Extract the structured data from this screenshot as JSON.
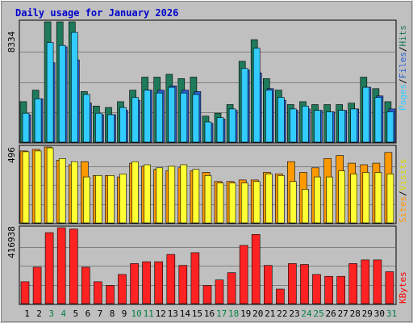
{
  "chart_data": {
    "type": "bar",
    "title": "Daily usage for January 2026",
    "categories": [
      "1",
      "2",
      "3",
      "4",
      "5",
      "6",
      "7",
      "8",
      "9",
      "10",
      "11",
      "12",
      "13",
      "14",
      "15",
      "16",
      "17",
      "18",
      "19",
      "20",
      "21",
      "22",
      "23",
      "24",
      "25",
      "26",
      "27",
      "28",
      "29",
      "30",
      "31"
    ],
    "weekend_days": [
      "3",
      "4",
      "10",
      "11",
      "17",
      "18",
      "24",
      "25",
      "31"
    ],
    "panels": [
      {
        "id": "top",
        "max_label": "8334",
        "ylim": [
          0,
          8334
        ],
        "grid": true,
        "legend": [
          "Pages",
          "/",
          "Files",
          "/",
          "Hits"
        ],
        "series": [
          {
            "name": "Hits",
            "color": "#1f7a5a",
            "values": [
              2800,
              3600,
              8334,
              8334,
              8334,
              3500,
              2500,
              2400,
              2800,
              3600,
              4500,
              4500,
              4700,
              4400,
              4500,
              1800,
              2000,
              2600,
              5600,
              7100,
              4400,
              3600,
              2600,
              2800,
              2600,
              2600,
              2600,
              2700,
              4500,
              3700,
              2800
            ]
          },
          {
            "name": "Files",
            "color": "#2a5fd3",
            "values": [
              1900,
              3000,
              5500,
              6600,
              5700,
              2700,
              1900,
              1900,
              2200,
              2900,
              3600,
              3600,
              3900,
              3600,
              3500,
              1300,
              1600,
              2200,
              5000,
              4800,
              3700,
              2900,
              2200,
              2300,
              2200,
              2100,
              2200,
              2300,
              3800,
              3200,
              2300
            ]
          },
          {
            "name": "Pages",
            "color": "#33ccff",
            "values": [
              2000,
              3000,
              6900,
              6700,
              7600,
              3300,
              2000,
              1900,
              2400,
              3100,
              3600,
              3400,
              3800,
              3400,
              3300,
              1400,
              1700,
              2300,
              5100,
              6500,
              3600,
              3100,
              2300,
              2500,
              2200,
              2100,
              2200,
              2300,
              3800,
              3100,
              2100
            ]
          }
        ]
      },
      {
        "id": "middle",
        "max_label": "496",
        "ylim": [
          0,
          496
        ],
        "grid": true,
        "legend": [
          "Sites",
          "/",
          "Visits"
        ],
        "series": [
          {
            "name": "Visits",
            "color": "#ff9900",
            "values": [
              470,
              480,
              496,
              410,
              380,
              400,
              310,
              310,
              300,
              390,
              370,
              350,
              340,
              360,
              340,
              330,
              270,
              270,
              280,
              280,
              330,
              320,
              400,
              330,
              360,
              420,
              440,
              390,
              380,
              390,
              460
            ]
          },
          {
            "name": "Sites",
            "color": "#ffff33",
            "values": [
              465,
              470,
              490,
              420,
              400,
              300,
              310,
              310,
              320,
              400,
              380,
              360,
              370,
              380,
              350,
              310,
              260,
              260,
              260,
              270,
              320,
              310,
              270,
              220,
              300,
              300,
              340,
              320,
              330,
              330,
              320
            ]
          }
        ]
      },
      {
        "id": "bottom",
        "max_label": "416938",
        "ylim": [
          0,
          416938
        ],
        "grid": true,
        "legend": [
          "KBytes"
        ],
        "series": [
          {
            "name": "KBytes",
            "color": "#ff2222",
            "values": [
              120000,
              200000,
              390000,
              416938,
              410000,
              200000,
              120000,
              100000,
              160000,
              220000,
              230000,
              230000,
              270000,
              210000,
              280000,
              100000,
              130000,
              170000,
              320000,
              380000,
              210000,
              80000,
              220000,
              215000,
              160000,
              150000,
              150000,
              220000,
              240000,
              240000,
              175000
            ]
          }
        ]
      }
    ]
  }
}
